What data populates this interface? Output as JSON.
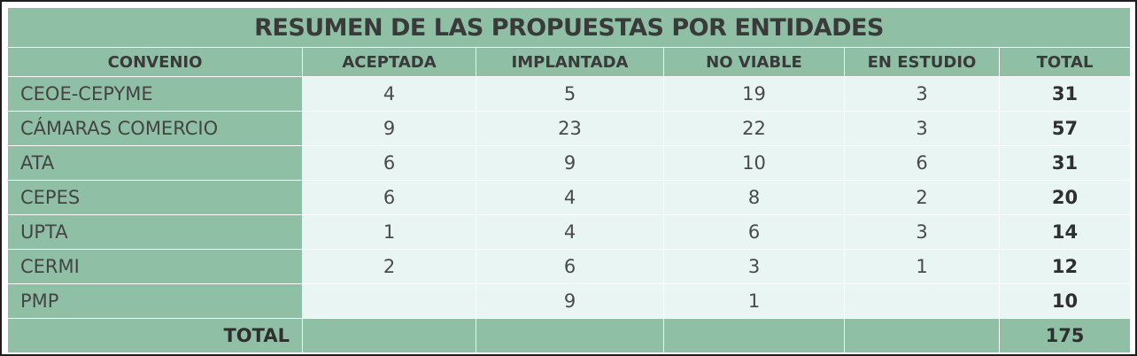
{
  "title": "RESUMEN DE LAS PROPUESTAS POR ENTIDADES",
  "columns": [
    "CONVENIO",
    "ACEPTADA",
    "IMPLANTADA",
    "NO VIABLE",
    "EN ESTUDIO",
    "TOTAL"
  ],
  "rows": [
    {
      "convenio": "CEOE-CEPYME",
      "aceptada": "4",
      "implantada": "5",
      "no_viable": "19",
      "en_estudio": "3",
      "total": "31"
    },
    {
      "convenio": "CÁMARAS COMERCIO",
      "aceptada": "9",
      "implantada": "23",
      "no_viable": "22",
      "en_estudio": "3",
      "total": "57"
    },
    {
      "convenio": "ATA",
      "aceptada": "6",
      "implantada": "9",
      "no_viable": "10",
      "en_estudio": "6",
      "total": "31"
    },
    {
      "convenio": "CEPES",
      "aceptada": "6",
      "implantada": "4",
      "no_viable": "8",
      "en_estudio": "2",
      "total": "20"
    },
    {
      "convenio": "UPTA",
      "aceptada": "1",
      "implantada": "4",
      "no_viable": "6",
      "en_estudio": "3",
      "total": "14"
    },
    {
      "convenio": "CERMI",
      "aceptada": "2",
      "implantada": "6",
      "no_viable": "3",
      "en_estudio": "1",
      "total": "12"
    },
    {
      "convenio": "PMP",
      "aceptada": "",
      "implantada": "9",
      "no_viable": "1",
      "en_estudio": "",
      "total": "10"
    }
  ],
  "footer": {
    "label": "TOTAL",
    "aceptada": "",
    "implantada": "",
    "no_viable": "",
    "en_estudio": "",
    "total": "175"
  },
  "colors": {
    "header_bg": "#8fbfa4",
    "cell_bg": "#e8f5f3",
    "text": "#3a3a3a"
  }
}
